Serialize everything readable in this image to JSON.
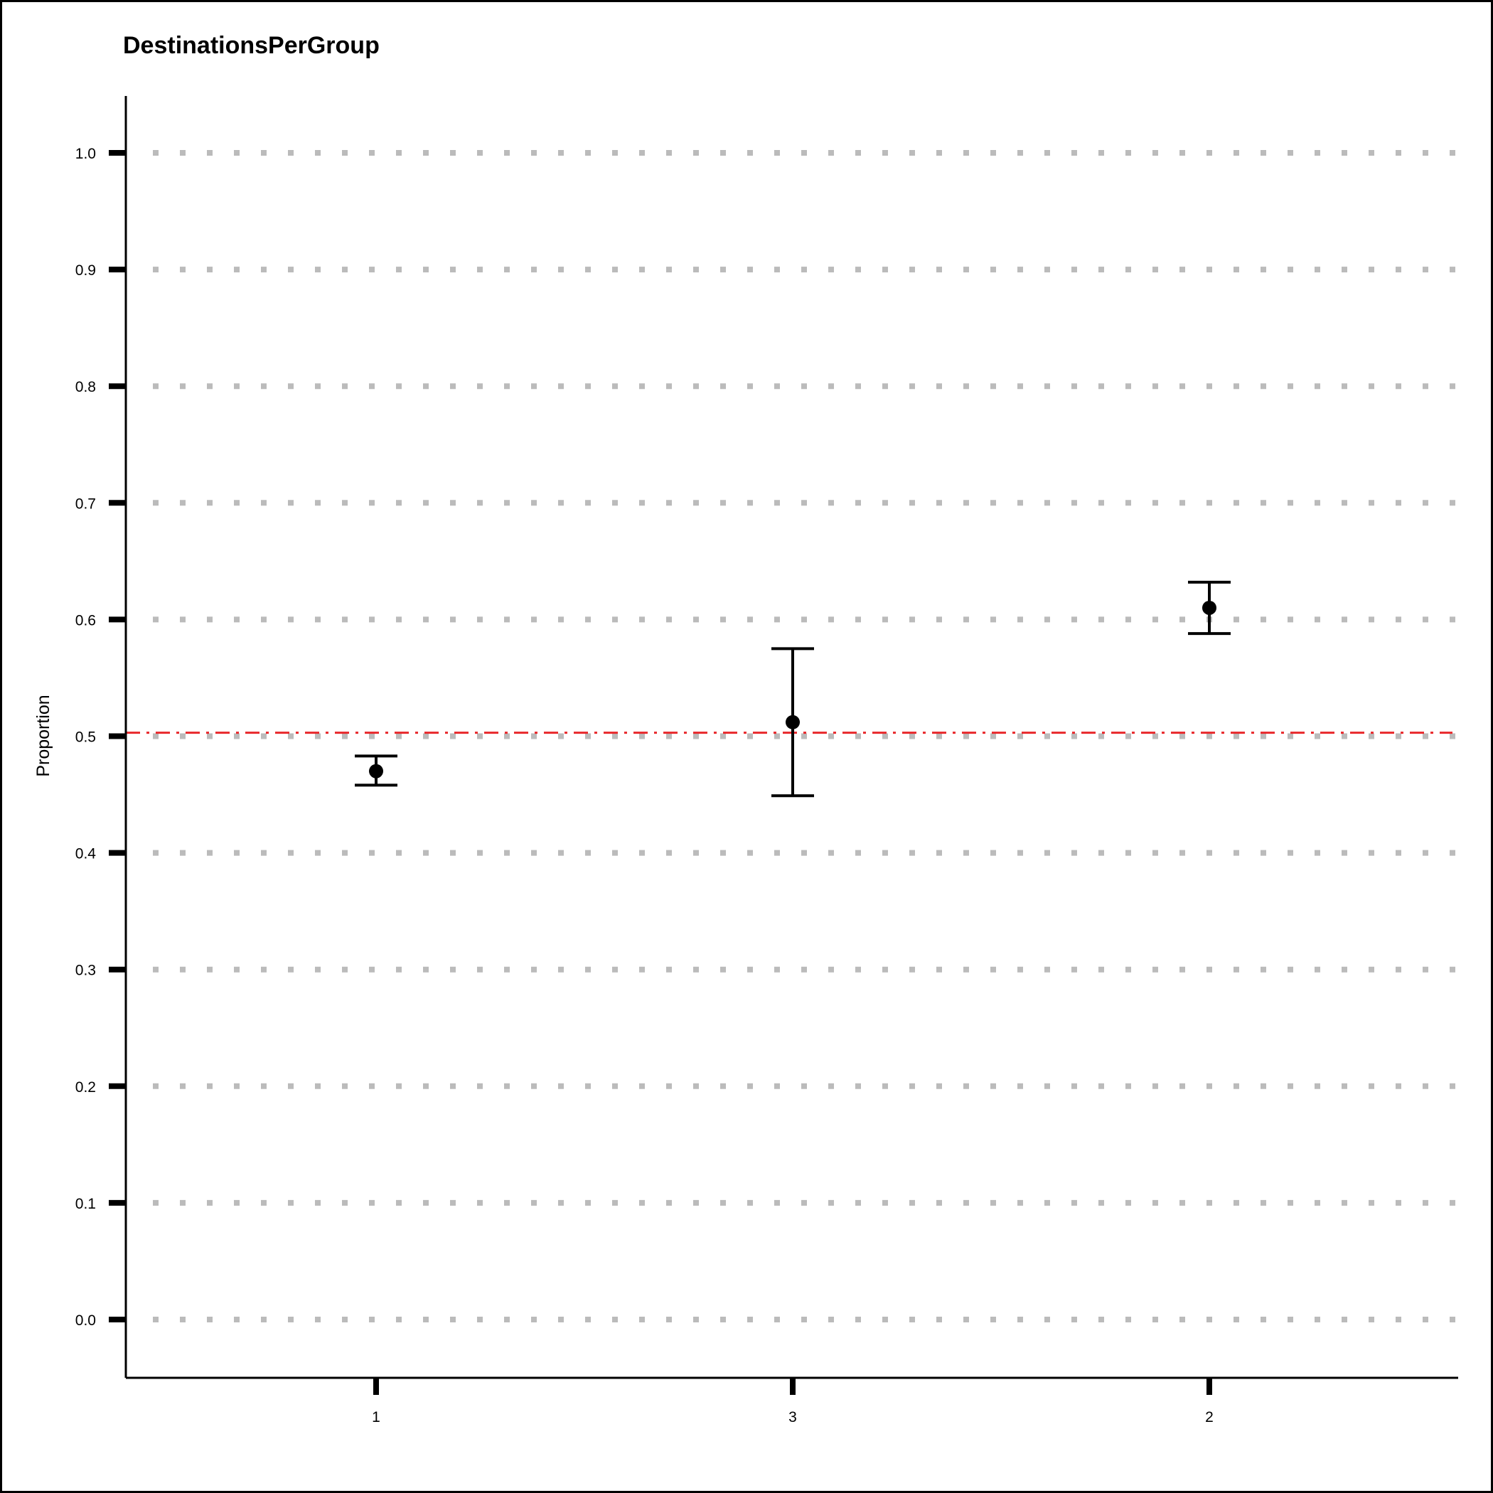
{
  "chart_data": {
    "type": "scatter",
    "title": "DestinationsPerGroup",
    "xlabel": "",
    "ylabel": "Proportion",
    "categories": [
      "1",
      "3",
      "2"
    ],
    "series": [
      {
        "values": [
          0.47,
          0.512,
          0.61
        ],
        "error_low": [
          0.458,
          0.449,
          0.588
        ],
        "error_high": [
          0.483,
          0.575,
          0.632
        ]
      }
    ],
    "reference_line": {
      "y": 0.503,
      "style": "dash-dot",
      "color": "#e8282b"
    },
    "yticks": [
      "0.0",
      "0.1",
      "0.2",
      "0.3",
      "0.4",
      "0.5",
      "0.6",
      "0.7",
      "0.8",
      "0.9",
      "1.0"
    ],
    "ylim": [
      -0.05,
      1.05
    ],
    "grid": true,
    "grid_style": "dotted",
    "grid_color": "#bbbbbb",
    "marker_color": "#000000",
    "legend": "none"
  }
}
